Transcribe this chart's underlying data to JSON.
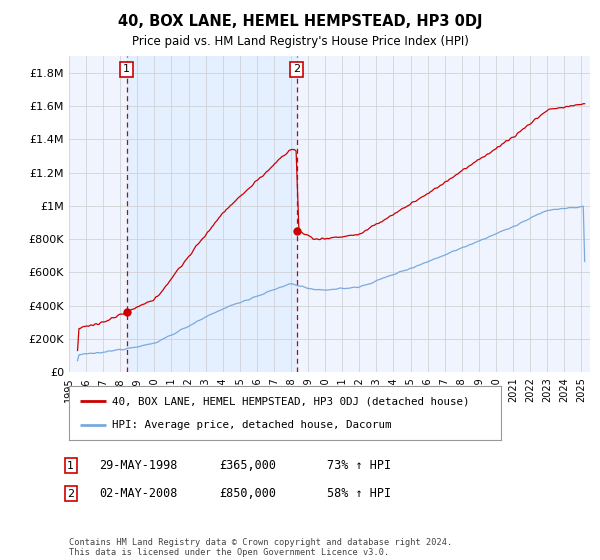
{
  "title": "40, BOX LANE, HEMEL HEMPSTEAD, HP3 0DJ",
  "subtitle": "Price paid vs. HM Land Registry's House Price Index (HPI)",
  "ylabel_ticks": [
    "£0",
    "£200K",
    "£400K",
    "£600K",
    "£800K",
    "£1M",
    "£1.2M",
    "£1.4M",
    "£1.6M",
    "£1.8M"
  ],
  "ytick_values": [
    0,
    200000,
    400000,
    600000,
    800000,
    1000000,
    1200000,
    1400000,
    1600000,
    1800000
  ],
  "ylim": [
    0,
    1900000
  ],
  "xlim_start": 1995.3,
  "xlim_end": 2025.5,
  "sale1_x": 1998.38,
  "sale1_y": 365000,
  "sale2_x": 2008.33,
  "sale2_y": 850000,
  "sale1_date": "29-MAY-1998",
  "sale1_price": "£365,000",
  "sale1_hpi": "73% ↑ HPI",
  "sale2_date": "02-MAY-2008",
  "sale2_price": "£850,000",
  "sale2_hpi": "58% ↑ HPI",
  "red_color": "#cc0000",
  "blue_color": "#7aaadd",
  "shade_color": "#ddeeff",
  "grid_color": "#cccccc",
  "background_color": "#ffffff",
  "plot_bg_color": "#f0f4ff",
  "legend_label_red": "40, BOX LANE, HEMEL HEMPSTEAD, HP3 0DJ (detached house)",
  "legend_label_blue": "HPI: Average price, detached house, Dacorum",
  "footnote": "Contains HM Land Registry data © Crown copyright and database right 2024.\nThis data is licensed under the Open Government Licence v3.0.",
  "xtick_years": [
    1995,
    1996,
    1997,
    1998,
    1999,
    2000,
    2001,
    2002,
    2003,
    2004,
    2005,
    2006,
    2007,
    2008,
    2009,
    2010,
    2011,
    2012,
    2013,
    2014,
    2015,
    2016,
    2017,
    2018,
    2019,
    2020,
    2021,
    2022,
    2023,
    2024,
    2025
  ]
}
